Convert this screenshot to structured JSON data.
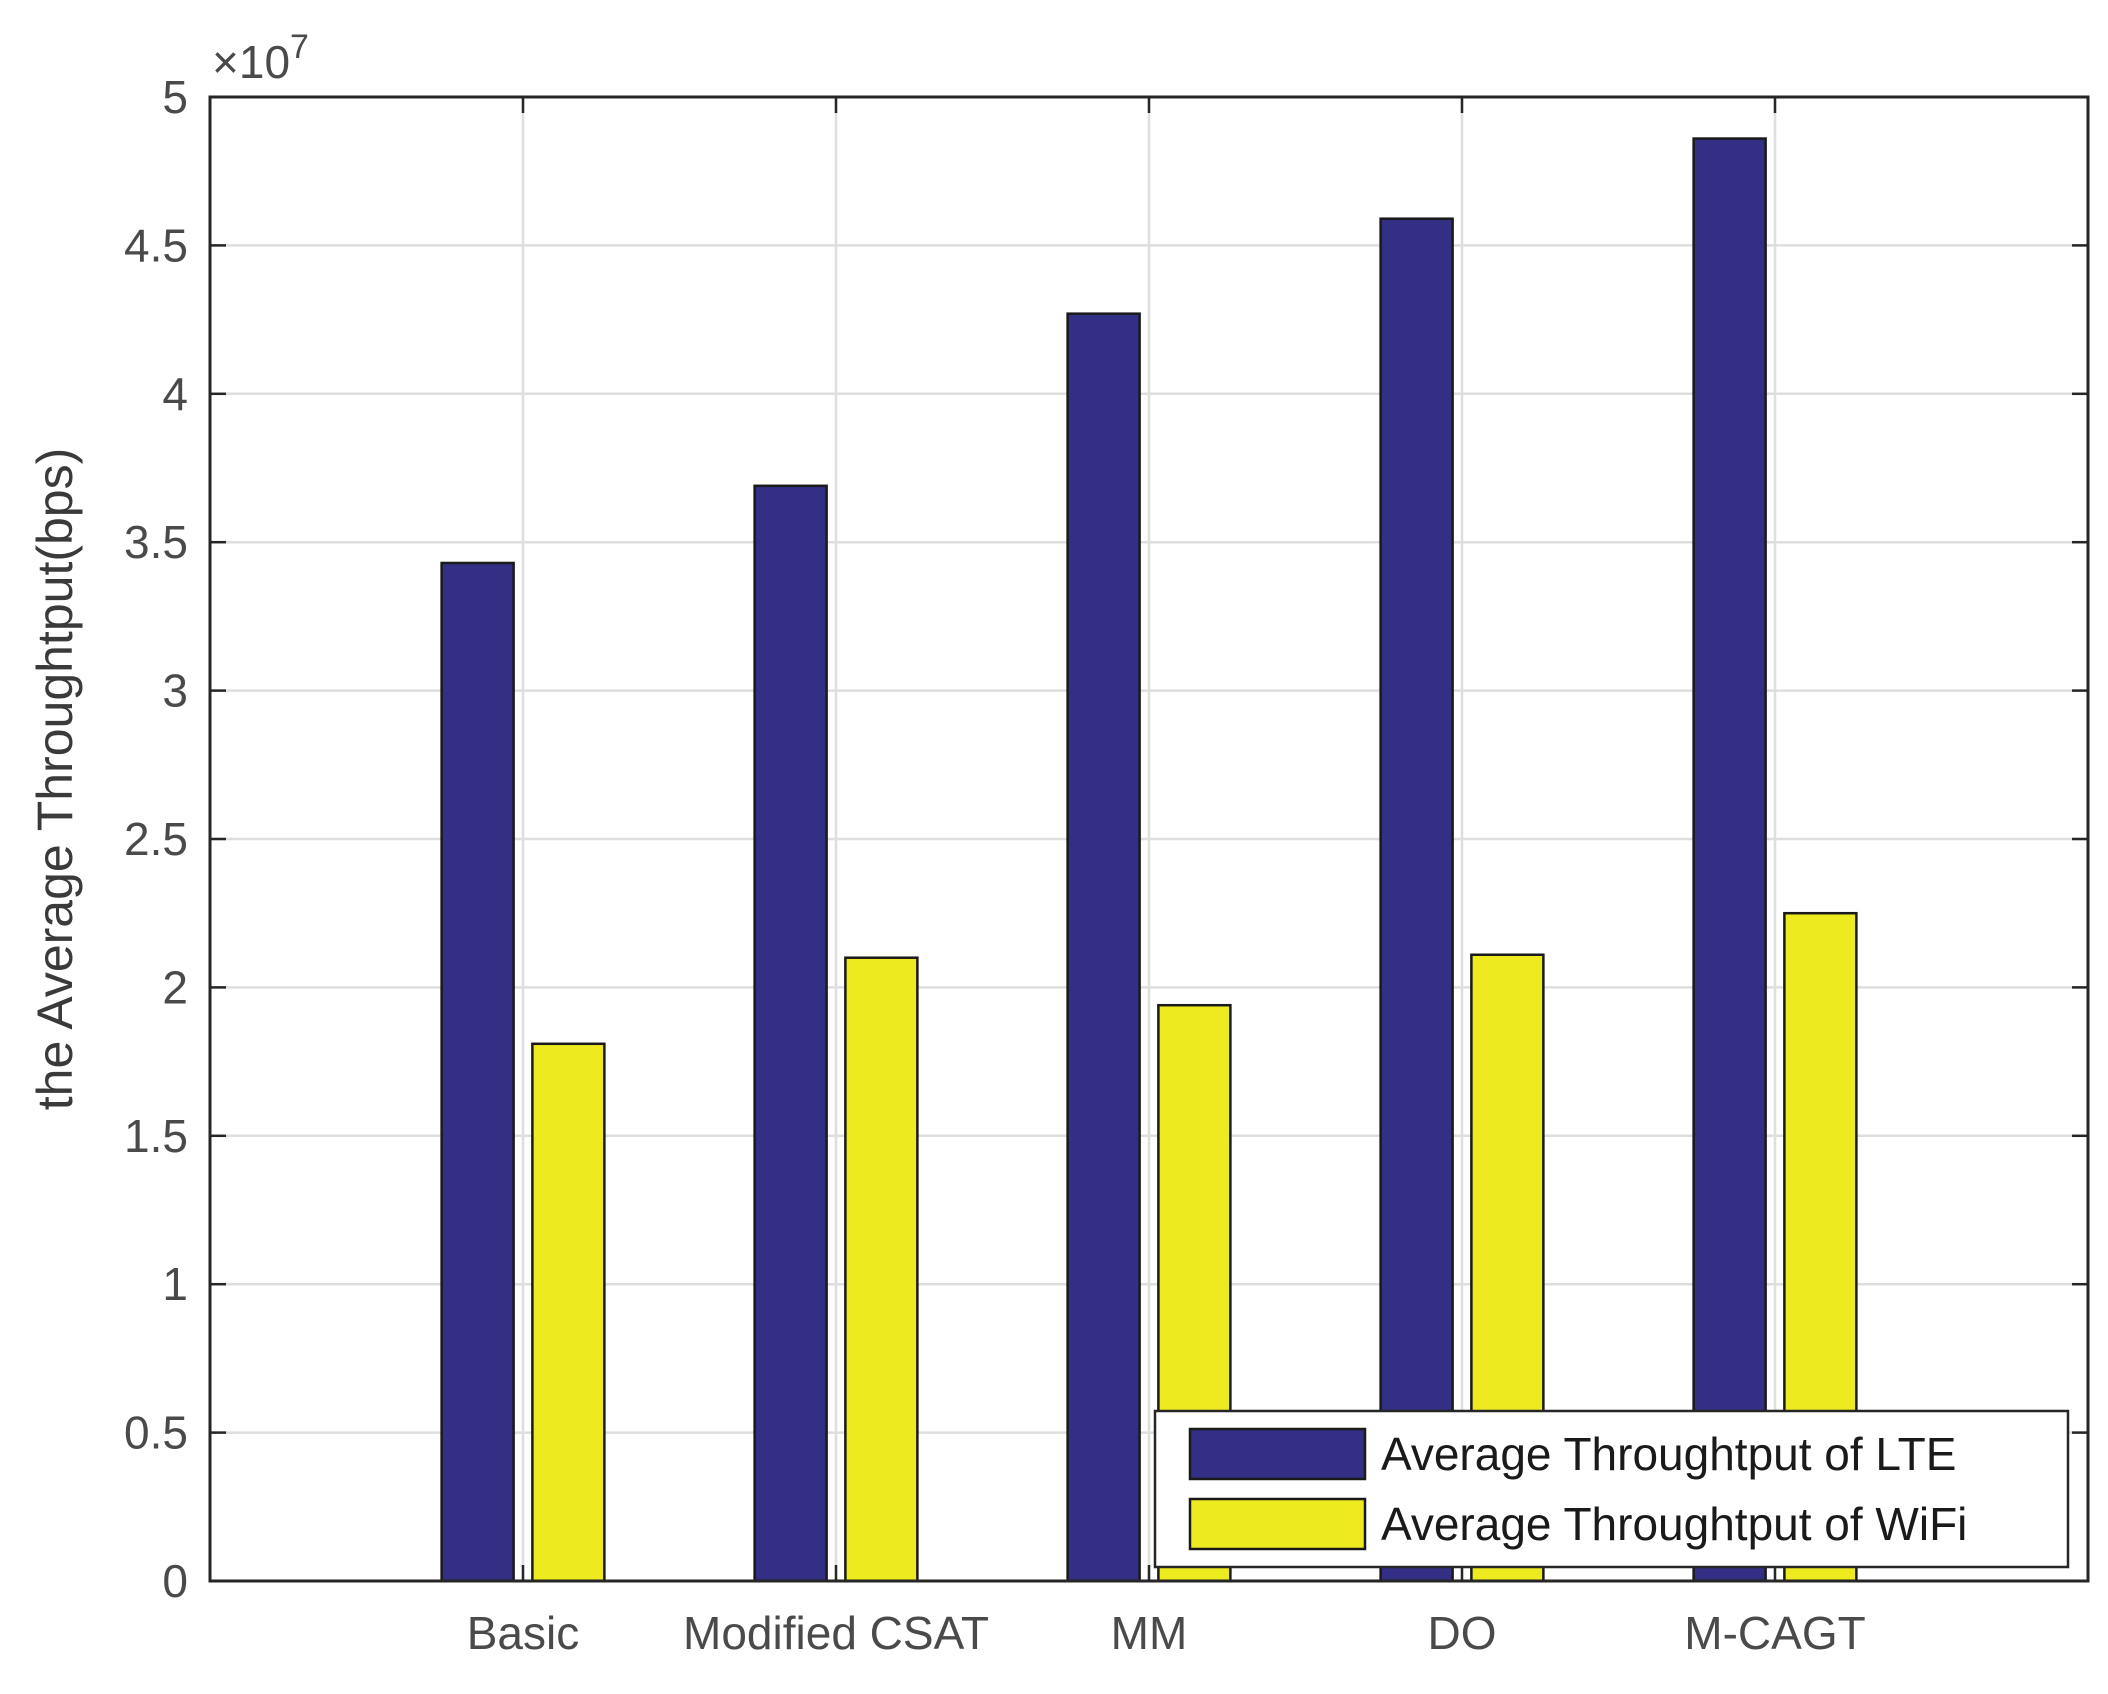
{
  "chart_data": {
    "type": "bar",
    "title": "",
    "xlabel": "",
    "ylabel": "the Average Throughtput(bps)",
    "y_exponent_label": {
      "base": "×10",
      "power": "7"
    },
    "ylim": [
      0,
      5
    ],
    "y_ticks": [
      0,
      0.5,
      1,
      1.5,
      2,
      2.5,
      3,
      3.5,
      4,
      4.5,
      5
    ],
    "y_tick_labels": [
      "0",
      "0.5",
      "1",
      "1.5",
      "2",
      "2.5",
      "3",
      "3.5",
      "4",
      "4.5",
      "5"
    ],
    "x_positions": [
      1,
      2,
      3,
      4,
      5
    ],
    "xlim": [
      0,
      6
    ],
    "categories": [
      "Basic",
      "Modified CSAT",
      "MM",
      "DO",
      "M-CAGT"
    ],
    "grid": true,
    "legend_location": "bottom-right",
    "series": [
      {
        "name": "Average Throughtput of LTE",
        "color": "#332f84",
        "values": [
          3.43,
          3.69,
          4.27,
          4.59,
          4.86
        ]
      },
      {
        "name": "Average Throughtput of WiFi",
        "color": "#eeea20",
        "values": [
          1.81,
          2.1,
          1.94,
          2.11,
          2.25
        ]
      }
    ]
  }
}
